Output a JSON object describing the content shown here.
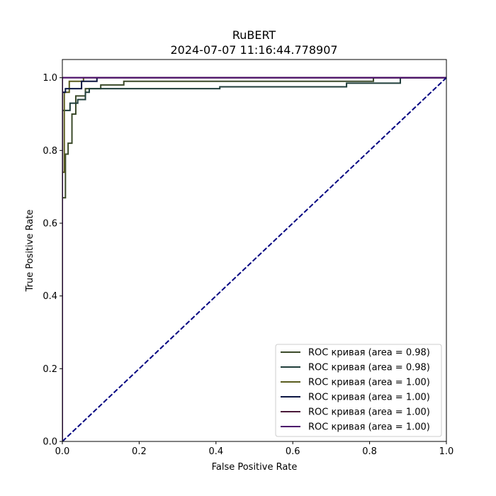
{
  "chart_data": {
    "type": "line",
    "title": "RuBERT",
    "subtitle": "2024-07-07 11:16:44.778907",
    "xlabel": "False Positive Rate",
    "ylabel": "True Positive Rate",
    "xlim": [
      0.0,
      1.0
    ],
    "ylim": [
      0.0,
      1.05
    ],
    "x_ticks": [
      "0.0",
      "0.2",
      "0.4",
      "0.6",
      "0.8",
      "1.0"
    ],
    "y_ticks": [
      "0.0",
      "0.2",
      "0.4",
      "0.6",
      "0.8",
      "1.0"
    ],
    "grid": false,
    "legend_position": "lower-right",
    "series": [
      {
        "name": "ROC кривая (area = 0.98)",
        "color": "#3b4a2a",
        "x": [
          0.0,
          0.0,
          0.008,
          0.008,
          0.015,
          0.015,
          0.025,
          0.025,
          0.035,
          0.035,
          0.06,
          0.06,
          0.1,
          0.1,
          0.16,
          0.16,
          0.81,
          0.81,
          1.0
        ],
        "y": [
          0.0,
          0.67,
          0.67,
          0.79,
          0.79,
          0.82,
          0.82,
          0.9,
          0.9,
          0.95,
          0.95,
          0.97,
          0.97,
          0.98,
          0.98,
          0.99,
          0.99,
          1.0,
          1.0
        ]
      },
      {
        "name": "ROC кривая (area = 0.98)",
        "color": "#1f3d3a",
        "x": [
          0.0,
          0.0,
          0.02,
          0.02,
          0.04,
          0.04,
          0.06,
          0.06,
          0.07,
          0.07,
          0.41,
          0.41,
          0.74,
          0.74,
          0.88,
          0.88,
          1.0
        ],
        "y": [
          0.0,
          0.91,
          0.91,
          0.93,
          0.93,
          0.94,
          0.94,
          0.96,
          0.96,
          0.97,
          0.97,
          0.975,
          0.975,
          0.985,
          0.985,
          1.0,
          1.0
        ]
      },
      {
        "name": "ROC кривая (area = 1.00)",
        "color": "#5a5c1e",
        "x": [
          0.0,
          0.0,
          0.005,
          0.005,
          0.018,
          0.018,
          0.055,
          0.055,
          1.0
        ],
        "y": [
          0.0,
          0.74,
          0.74,
          0.96,
          0.96,
          0.99,
          0.99,
          1.0,
          1.0
        ]
      },
      {
        "name": "ROC кривая (area = 1.00)",
        "color": "#0c1642",
        "x": [
          0.0,
          0.0,
          0.008,
          0.008,
          0.05,
          0.05,
          0.09,
          0.09,
          1.0
        ],
        "y": [
          0.0,
          0.96,
          0.96,
          0.97,
          0.97,
          0.99,
          0.99,
          1.0,
          1.0
        ]
      },
      {
        "name": "ROC кривая (area = 1.00)",
        "color": "#4a1838",
        "x": [
          0.0,
          0.0,
          1.0
        ],
        "y": [
          0.0,
          1.0,
          1.0
        ]
      },
      {
        "name": "ROC кривая (area = 1.00)",
        "color": "#4b0c6b",
        "x": [
          0.0,
          0.0,
          1.0
        ],
        "y": [
          0.0,
          1.0,
          1.0
        ]
      }
    ],
    "reference_line": {
      "x": [
        0.0,
        1.0
      ],
      "y": [
        0.0,
        1.0
      ],
      "color": "#000080",
      "style": "dashed"
    }
  }
}
